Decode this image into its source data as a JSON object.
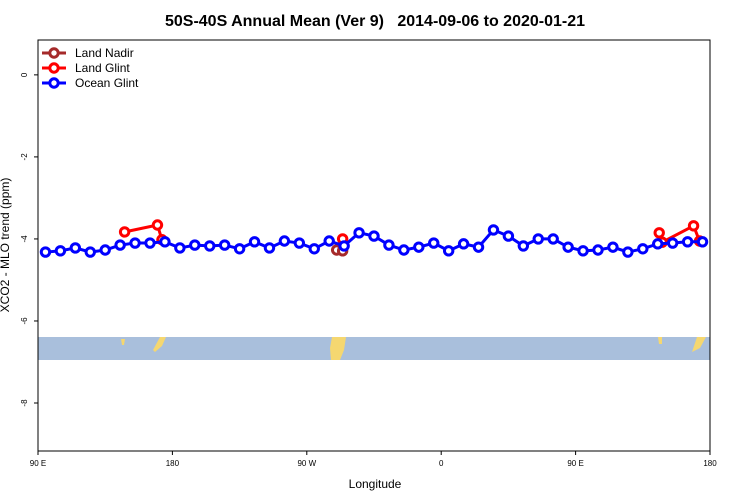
{
  "chart_data": {
    "type": "line",
    "title": "50S-40S Annual Mean (Ver 9)   2014-09-06 to 2020-01-21",
    "x_label": "Longitude",
    "y_label": "XCO2 - MLO trend (ppm)",
    "xlim": [
      90,
      540
    ],
    "xticks": [
      {
        "value": 90,
        "label": "90 E"
      },
      {
        "value": 180,
        "label": "180"
      },
      {
        "value": 270,
        "label": "90 W"
      },
      {
        "value": 360,
        "label": "0"
      },
      {
        "value": 450,
        "label": "90 E"
      },
      {
        "value": 540,
        "label": "180"
      }
    ],
    "ylim": [
      -9.17,
      0.85
    ],
    "yticks": [
      0,
      -2,
      -4,
      -6,
      -8
    ],
    "legend": "top-left",
    "series": [
      {
        "name": "Land Nadir",
        "color": "#a52a2a",
        "x": [
          290,
          294
        ],
        "values": [
          -4.27,
          -4.29
        ]
      },
      {
        "name": "Land Glint",
        "color": "#ff0000",
        "x": [
          148,
          170,
          173,
          200,
          294,
          400,
          506,
          508,
          529,
          533
        ],
        "values": [
          -3.83,
          -3.66,
          -4.02,
          null,
          -4.0,
          null,
          -3.85,
          -4.08,
          -3.68,
          -4.05
        ]
      },
      {
        "name": "Ocean Glint",
        "color": "#0000ff",
        "x": [
          95,
          105,
          115,
          125,
          135,
          145,
          155,
          165,
          175,
          185,
          195,
          205,
          215,
          225,
          235,
          245,
          255,
          265,
          275,
          285,
          295,
          305,
          315,
          325,
          335,
          345,
          355,
          365,
          375,
          385,
          395,
          405,
          415,
          425,
          435,
          445,
          455,
          465,
          475,
          485,
          495,
          505,
          515,
          525,
          535
        ],
        "values": [
          -4.32,
          -4.29,
          -4.22,
          -4.32,
          -4.27,
          -4.15,
          -4.1,
          -4.1,
          -4.07,
          -4.22,
          -4.15,
          -4.17,
          -4.15,
          -4.24,
          -4.07,
          -4.22,
          -4.05,
          -4.1,
          -4.24,
          -4.05,
          -4.17,
          -3.85,
          -3.93,
          -4.15,
          -4.27,
          -4.2,
          -4.1,
          -4.29,
          -4.12,
          -4.2,
          -3.78,
          -3.93,
          -4.17,
          -4.0,
          -4.0,
          -4.2,
          -4.29,
          -4.27,
          -4.2,
          -4.32,
          -4.24,
          -4.12,
          -4.1,
          -4.07,
          -4.07
        ]
      }
    ]
  }
}
